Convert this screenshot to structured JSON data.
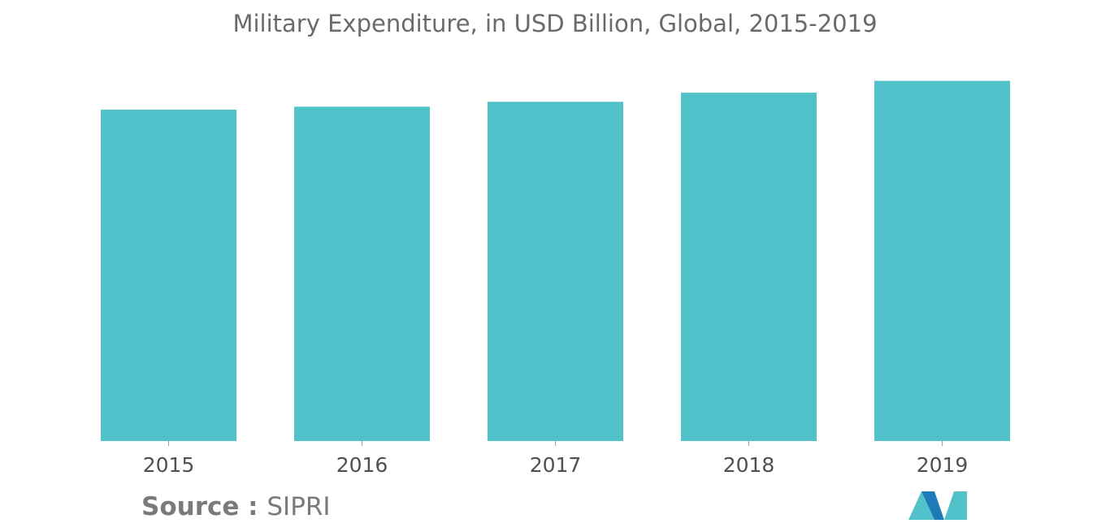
{
  "chart_data": {
    "type": "bar",
    "title": "Military Expenditure, in USD Billion, Global, 2015-2019",
    "xlabel": "",
    "ylabel": "",
    "categories": [
      "2015",
      "2016",
      "2017",
      "2018",
      "2019"
    ],
    "values": [
      1676,
      1691,
      1716,
      1762,
      1822
    ],
    "ylim": [
      0,
      1976
    ],
    "grid": false,
    "y_axis_visible": false,
    "bar_color": "#52c2ca"
  },
  "source": {
    "label": "Source :",
    "value": "SIPRI"
  },
  "logo": {
    "icon": "mordor-intelligence-logo",
    "colors": [
      "#52c2ca",
      "#1f7ab8"
    ]
  }
}
